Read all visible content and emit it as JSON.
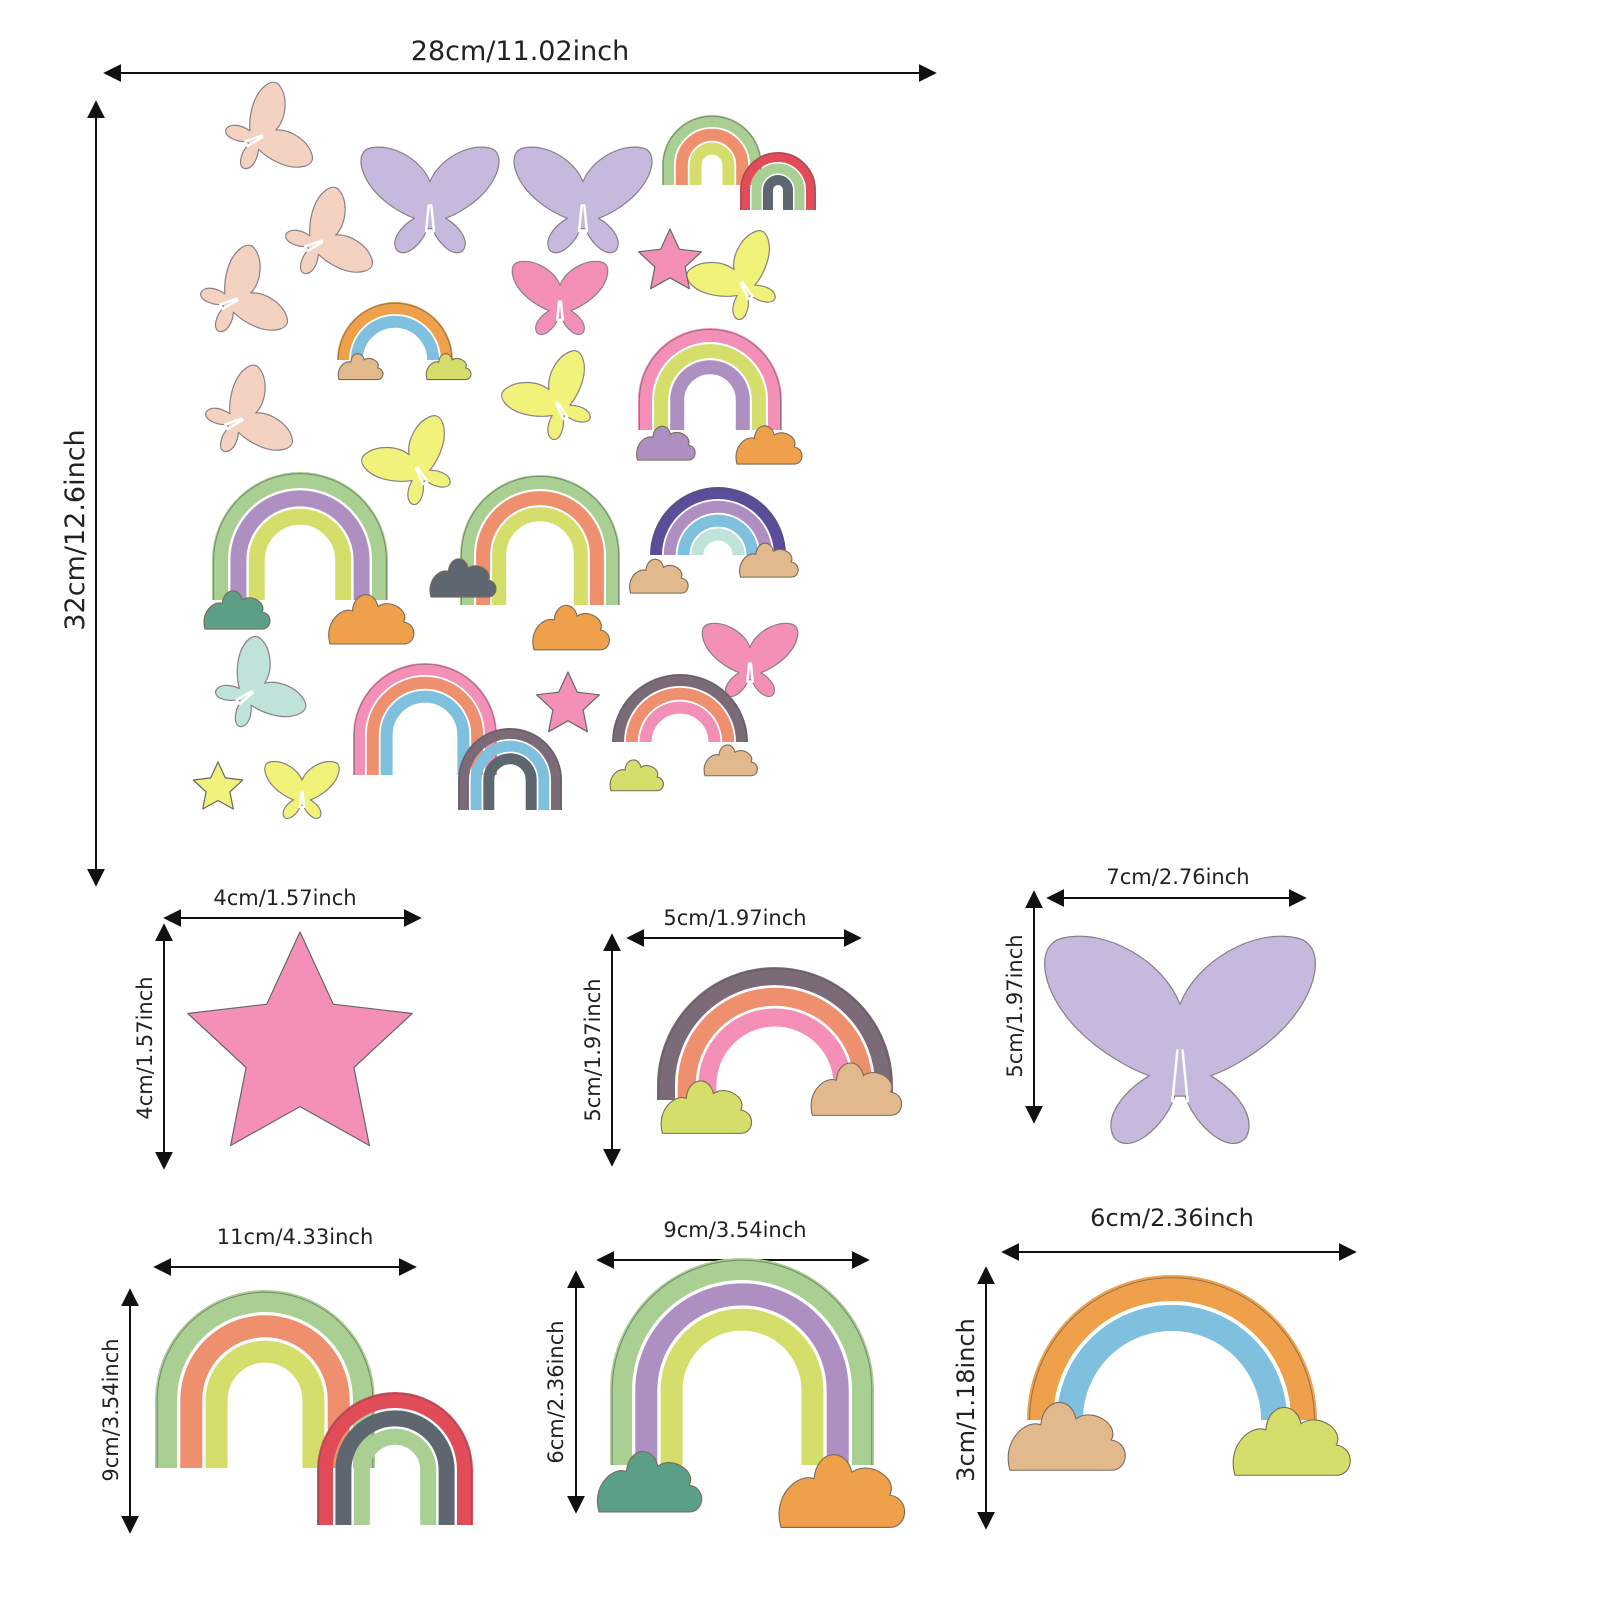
{
  "sheet": {
    "width_label": "28cm/11.02inch",
    "height_label": "32cm/12.6inch"
  },
  "details": [
    {
      "name": "star",
      "width_label": "4cm/1.57inch",
      "height_label": "4cm/1.57inch"
    },
    {
      "name": "small-rainbow",
      "width_label": "5cm/1.97inch",
      "height_label": "5cm/1.97inch"
    },
    {
      "name": "butterfly",
      "width_label": "7cm/2.76inch",
      "height_label": "5cm/1.97inch"
    },
    {
      "name": "double-rainbow",
      "width_label": "11cm/4.33inch",
      "height_label": "9cm/3.54inch"
    },
    {
      "name": "cloud-rainbow",
      "width_label": "9cm/3.54inch",
      "height_label": "6cm/2.36inch"
    },
    {
      "name": "wide-rainbow",
      "width_label": "6cm/2.36inch",
      "height_label": "3cm/1.18inch"
    }
  ],
  "colors": {
    "peach": "#f3d2c2",
    "lavender": "#c7b9dd",
    "pink": "#f490b8",
    "yellow": "#f1f27a",
    "mint": "#bfe3d8",
    "green": "#a9cf93",
    "coral": "#ee8f6e",
    "lime": "#d5de6a",
    "purple": "#ad90c1",
    "orange": "#eea04a",
    "sky": "#7fc0de",
    "tan": "#e2b98c",
    "slate": "#5e6670",
    "teal": "#5b9f86",
    "red": "#e24c58",
    "mauve": "#7b6a78",
    "navy": "#5a4e9a"
  }
}
